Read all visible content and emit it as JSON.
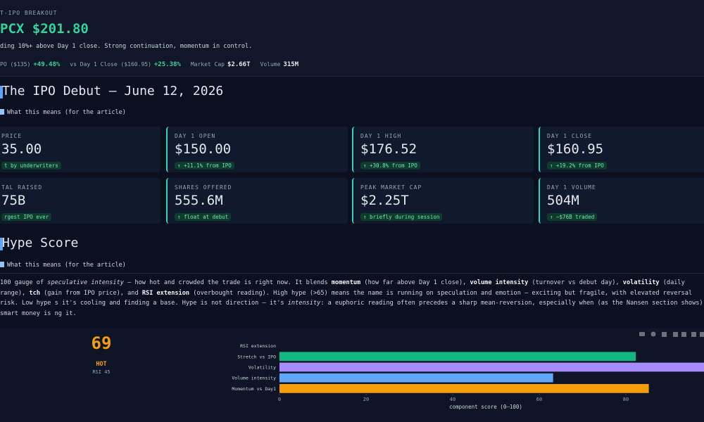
{
  "header": {
    "eyebrow": "T-IPO BREAKOUT",
    "title": "PCX $201.80",
    "subtitle": "ding 10%+ above Day 1 close. Strong continuation, momentum in control.",
    "stats": [
      {
        "label": "PO ($135)",
        "value": "+49.48%"
      },
      {
        "label": "vs Day 1 Close ($160.95)",
        "value": "+25.38%"
      },
      {
        "label": "Market Cap",
        "value": "$2.66T"
      },
      {
        "label": "Volume",
        "value": "315M"
      }
    ]
  },
  "debut": {
    "title": "The IPO Debut — June 12, 2026",
    "toggle": "What this means (for the article)",
    "cards": [
      {
        "label": "PRICE",
        "value": "35.00",
        "badge": "t by underwriters"
      },
      {
        "label": "DAY 1 OPEN",
        "value": "$150.00",
        "badge": "↑ +11.1% from IPO"
      },
      {
        "label": "DAY 1 HIGH",
        "value": "$176.52",
        "badge": "↑ +30.8% from IPO"
      },
      {
        "label": "DAY 1 CLOSE",
        "value": "$160.95",
        "badge": "↑ +19.2% from IPO"
      },
      {
        "label": "TAL RAISED",
        "value": "75B",
        "badge": "rgest IPO ever"
      },
      {
        "label": "SHARES OFFERED",
        "value": "555.6M",
        "badge": "↑ float at debut"
      },
      {
        "label": "PEAK MARKET CAP",
        "value": "$2.25T",
        "badge": "↑ briefly during session"
      },
      {
        "label": "DAY 1 VOLUME",
        "value": "504M",
        "badge": "↑ ~$76B traded"
      }
    ]
  },
  "hype": {
    "title": "Hype Score",
    "toggle": "What this means (for the article)",
    "paragraph": [
      {
        "text": "100 gauge of "
      },
      {
        "text": "speculative intensity",
        "style": "i"
      },
      {
        "text": " — how hot and crowded the trade is right now. It blends "
      },
      {
        "text": "momentum",
        "style": "b"
      },
      {
        "text": " (how far above Day 1 close), "
      },
      {
        "text": "volume intensity",
        "style": "b"
      },
      {
        "text": " (turnover vs debut day), "
      },
      {
        "text": "volatility",
        "style": "b"
      },
      {
        "text": " (daily range), "
      },
      {
        "text": "tch",
        "style": "b"
      },
      {
        "text": " (gain from IPO price), and "
      },
      {
        "text": "RSI extension",
        "style": "b"
      },
      {
        "text": " (overbought reading). High hype (>65) means the name is running on speculation and emotion — exciting but fragile, with elevated reversal risk. Low hype s it's cooling and finding a base. Hype is not direction — it's "
      },
      {
        "text": "intensity",
        "style": "i"
      },
      {
        "text": ": a euphoric reading often precedes a sharp mean-reversion, especially when (as the Nansen section shows) smart money is ng it."
      }
    ],
    "score": 69,
    "level": "HOT",
    "rsi": "RSI 45"
  },
  "chart_data": {
    "type": "bar",
    "orientation": "horizontal",
    "categories": [
      "RSI extension",
      "Stretch vs IPO",
      "Volatility",
      "Volume intensity",
      "Momentum vs Day1"
    ],
    "values": [
      0,
      82.3,
      100,
      63.2,
      85.3
    ],
    "colors": [
      "#9ca3af",
      "#10b981",
      "#a78bfa",
      "#60a5fa",
      "#f59e0b"
    ],
    "xlabel": "component score (0–100)",
    "xlim": [
      0,
      100
    ],
    "xticks": [
      0,
      20,
      40,
      60,
      80
    ]
  }
}
